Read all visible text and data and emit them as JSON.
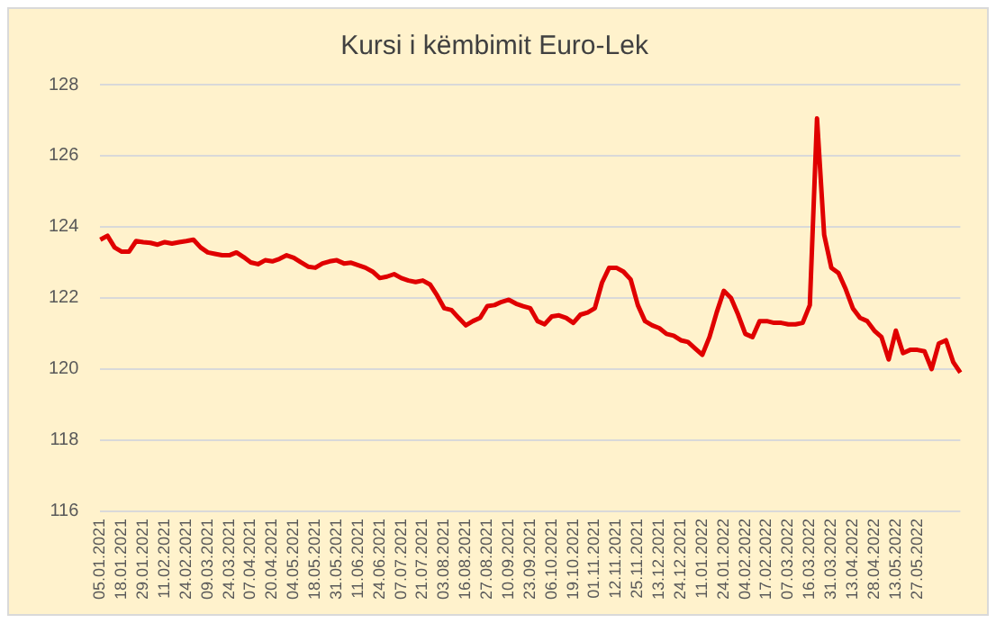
{
  "chart_data": {
    "type": "line",
    "title": "Kursi i këmbimit Euro-Lek",
    "categories": [
      "05.01.2021",
      null,
      null,
      "18.01.2021",
      null,
      null,
      "29.01.2021",
      null,
      null,
      "11.02.2021",
      null,
      null,
      "24.02.2021",
      null,
      null,
      "09.03.2021",
      null,
      null,
      "24.03.2021",
      null,
      null,
      "07.04.2021",
      null,
      null,
      "20.04.2021",
      null,
      null,
      "04.05.2021",
      null,
      null,
      "18.05.2021",
      null,
      null,
      "31.05.2021",
      null,
      null,
      "11.06.2021",
      null,
      null,
      "24.06.2021",
      null,
      null,
      "07.07.2021",
      null,
      null,
      "21.07.2021",
      null,
      null,
      "03.08.2021",
      null,
      null,
      "16.08.2021",
      null,
      null,
      "27.08.2021",
      null,
      null,
      "10.09.2021",
      null,
      null,
      "23.09.2021",
      null,
      null,
      "06.10.2021",
      null,
      null,
      "19.10.2021",
      null,
      null,
      "01.11.2021",
      null,
      null,
      "12.11.2021",
      null,
      null,
      "25.11.2021",
      null,
      null,
      "13.12.2021",
      null,
      null,
      "24.12.2021",
      null,
      null,
      "11.01.2022",
      null,
      null,
      "24.01.2022",
      null,
      null,
      "04.02.2022",
      null,
      null,
      "17.02.2022",
      null,
      null,
      "07.03.2022",
      null,
      null,
      "16.03.2022",
      null,
      null,
      "31.03.2022",
      null,
      null,
      "13.04.2022",
      null,
      null,
      "28.04.2022",
      null,
      null,
      "13.05.2022",
      null,
      null,
      "27.05.2022",
      null,
      null,
      null,
      null,
      null,
      null
    ],
    "series": [
      {
        "color": "#e00000",
        "values": [
          123.64,
          123.75,
          123.42,
          123.3,
          123.3,
          123.6,
          123.57,
          123.55,
          123.5,
          123.57,
          123.53,
          123.57,
          123.6,
          123.64,
          123.42,
          123.28,
          123.24,
          123.2,
          123.2,
          123.28,
          123.15,
          123.0,
          122.95,
          123.06,
          123.03,
          123.1,
          123.2,
          123.13,
          123.0,
          122.88,
          122.85,
          122.97,
          123.03,
          123.06,
          122.97,
          122.99,
          122.92,
          122.85,
          122.74,
          122.56,
          122.6,
          122.67,
          122.56,
          122.49,
          122.45,
          122.49,
          122.38,
          122.07,
          121.71,
          121.66,
          121.44,
          121.23,
          121.35,
          121.44,
          121.77,
          121.8,
          121.89,
          121.95,
          121.84,
          121.77,
          121.71,
          121.35,
          121.26,
          121.48,
          121.51,
          121.44,
          121.3,
          121.53,
          121.59,
          121.71,
          122.43,
          122.85,
          122.85,
          122.74,
          122.52,
          121.8,
          121.35,
          121.23,
          121.15,
          120.99,
          120.94,
          120.81,
          120.76,
          120.58,
          120.4,
          120.9,
          121.59,
          122.2,
          122.0,
          121.53,
          120.99,
          120.9,
          121.35,
          121.35,
          121.3,
          121.3,
          121.26,
          121.26,
          121.3,
          121.8,
          127.05,
          123.78,
          122.85,
          122.7,
          122.25,
          121.71,
          121.44,
          121.35,
          121.08,
          120.9,
          120.27,
          121.08,
          120.45,
          120.54,
          120.54,
          120.5,
          120.0,
          120.72,
          120.81,
          120.2,
          119.9
        ]
      }
    ],
    "ylim": [
      116,
      128
    ],
    "yticks": [
      116,
      118,
      120,
      122,
      124,
      126,
      128
    ],
    "grid": "y",
    "legend": false,
    "marker": "none",
    "line_style": "solid"
  }
}
